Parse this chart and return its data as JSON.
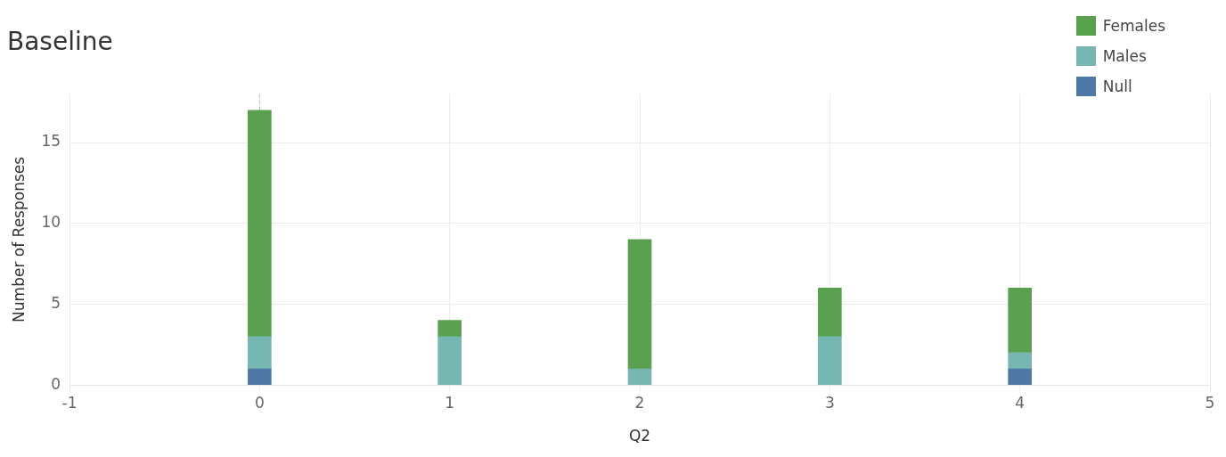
{
  "chart_data": {
    "type": "bar",
    "title": "Baseline",
    "xlabel": "Q2",
    "ylabel": "Number of Responses",
    "x": [
      0,
      1,
      2,
      3,
      4
    ],
    "stacked": true,
    "series": [
      {
        "name": "Null",
        "color": "#4e79a7",
        "values": [
          1,
          null,
          null,
          null,
          1
        ]
      },
      {
        "name": "Males",
        "color": "#76b7b2",
        "values": [
          2,
          3,
          1,
          3,
          1
        ]
      },
      {
        "name": "Females",
        "color": "#59a14f",
        "values": [
          14,
          1,
          8,
          3,
          4
        ]
      }
    ],
    "xlim": [
      -1,
      5
    ],
    "xticks": [
      -1,
      0,
      1,
      2,
      3,
      4,
      5
    ],
    "ylim": [
      0,
      18
    ],
    "yticks": [
      0,
      5,
      10,
      15
    ],
    "grid": true,
    "legend": "top right",
    "ref_lines": [
      {
        "axis": "x",
        "value": 0,
        "color": "#bbbbbb",
        "line_style": "dashed"
      }
    ]
  }
}
